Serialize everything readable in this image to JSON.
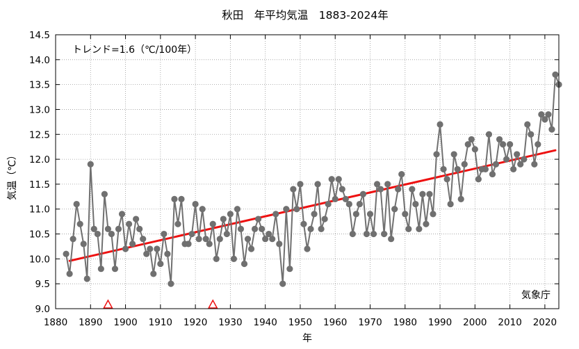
{
  "chart_data": {
    "type": "line",
    "title": "秋田　年平均気温　1883-2024年",
    "xlabel": "年",
    "ylabel": "気温（℃）",
    "annotation": "トレンド=1.6（℃/100年）",
    "source": "気象庁",
    "xlim": [
      1880,
      2024
    ],
    "ylim": [
      9.0,
      14.5
    ],
    "x_ticks": [
      1880,
      1890,
      1900,
      1910,
      1920,
      1930,
      1940,
      1950,
      1960,
      1970,
      1980,
      1990,
      2000,
      2010,
      2020
    ],
    "y_ticks": [
      9.0,
      9.5,
      10.0,
      10.5,
      11.0,
      11.5,
      12.0,
      12.5,
      13.0,
      13.5,
      14.0,
      14.5
    ],
    "grid": true,
    "series": [
      {
        "color": "#707070",
        "x": [
          1883,
          1884,
          1885,
          1886,
          1887,
          1888,
          1889,
          1890,
          1891,
          1892,
          1893,
          1894,
          1895,
          1896,
          1897,
          1898,
          1899,
          1900,
          1901,
          1902,
          1903,
          1904,
          1905,
          1906,
          1907,
          1908,
          1909,
          1910,
          1911,
          1912,
          1913,
          1914,
          1915,
          1916,
          1917,
          1918,
          1919,
          1920,
          1921,
          1922,
          1923,
          1924,
          1925,
          1926,
          1927,
          1928,
          1929,
          1930,
          1931,
          1932,
          1933,
          1934,
          1935,
          1936,
          1937,
          1938,
          1939,
          1940,
          1941,
          1942,
          1943,
          1944,
          1945,
          1946,
          1947,
          1948,
          1949,
          1950,
          1951,
          1952,
          1953,
          1954,
          1955,
          1956,
          1957,
          1958,
          1959,
          1960,
          1961,
          1962,
          1963,
          1964,
          1965,
          1966,
          1967,
          1968,
          1969,
          1970,
          1971,
          1972,
          1973,
          1974,
          1975,
          1976,
          1977,
          1978,
          1979,
          1980,
          1981,
          1982,
          1983,
          1984,
          1985,
          1986,
          1987,
          1988,
          1989,
          1990,
          1991,
          1992,
          1993,
          1994,
          1995,
          1996,
          1997,
          1998,
          1999,
          2000,
          2001,
          2002,
          2003,
          2004,
          2005,
          2006,
          2007,
          2008,
          2009,
          2010,
          2011,
          2012,
          2013,
          2014,
          2015,
          2016,
          2017,
          2018,
          2019,
          2020,
          2021,
          2022,
          2023,
          2024
        ],
        "y": [
          10.1,
          9.7,
          10.4,
          11.1,
          10.7,
          10.3,
          9.6,
          11.9,
          10.6,
          10.5,
          9.8,
          11.3,
          10.6,
          10.5,
          9.8,
          10.6,
          10.9,
          10.2,
          10.7,
          10.3,
          10.8,
          10.6,
          10.4,
          10.1,
          10.2,
          9.7,
          10.2,
          9.9,
          10.5,
          10.1,
          9.5,
          11.2,
          10.7,
          11.2,
          10.3,
          10.3,
          10.5,
          11.1,
          10.4,
          11.0,
          10.4,
          10.3,
          10.7,
          10.0,
          10.4,
          10.8,
          10.5,
          10.9,
          10.0,
          11.0,
          10.6,
          9.9,
          10.4,
          10.2,
          10.6,
          10.8,
          10.6,
          10.4,
          10.5,
          10.4,
          10.9,
          10.3,
          9.5,
          11.0,
          9.8,
          11.4,
          11.0,
          11.5,
          10.7,
          10.2,
          10.6,
          10.9,
          11.5,
          10.6,
          10.8,
          11.1,
          11.6,
          11.2,
          11.6,
          11.4,
          11.2,
          11.1,
          10.5,
          10.9,
          11.1,
          11.3,
          10.5,
          10.9,
          10.5,
          11.5,
          11.4,
          10.5,
          11.5,
          10.4,
          11.0,
          11.4,
          11.7,
          10.9,
          10.6,
          11.4,
          11.1,
          10.6,
          11.3,
          10.7,
          11.3,
          10.9,
          12.1,
          12.7,
          11.8,
          11.6,
          11.1,
          12.1,
          11.8,
          11.2,
          11.9,
          12.3,
          12.4,
          12.2,
          11.6,
          11.8,
          11.8,
          12.5,
          11.7,
          11.9,
          12.4,
          12.3,
          12.0,
          12.3,
          11.8,
          12.1,
          11.9,
          12.0,
          12.7,
          12.5,
          11.9,
          12.3,
          12.9,
          12.8,
          12.9,
          12.6,
          13.7,
          13.5
        ]
      },
      {
        "type": "trend",
        "color": "#ee1111",
        "x": [
          1884,
          2023
        ],
        "y": [
          9.96,
          12.18
        ]
      }
    ],
    "markers": {
      "shape": "triangle",
      "color": "#ee1111",
      "x": [
        1895,
        1925
      ]
    }
  }
}
